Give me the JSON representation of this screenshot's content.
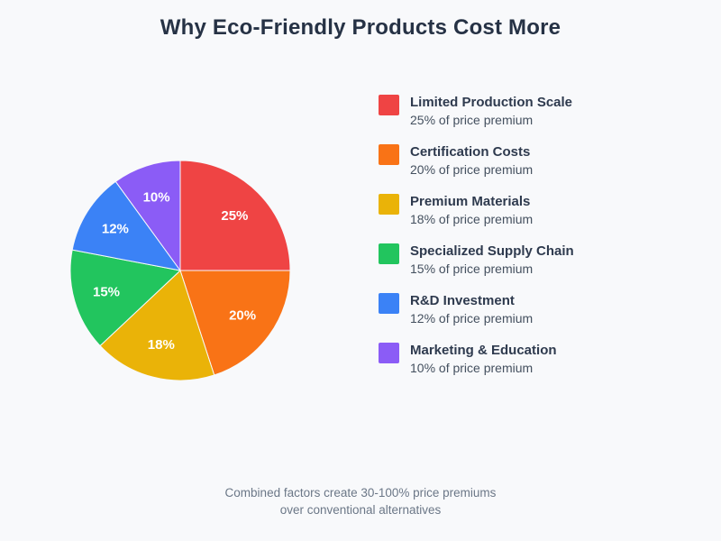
{
  "title": "Why Eco-Friendly Products Cost More",
  "colors": {
    "background": "#F8F9FB",
    "title_text": "#263245",
    "legend_title_text": "#2E3A4E",
    "legend_sub_text": "#44505F",
    "footer_text": "#6B7787",
    "slice_label_text": "#FFFFFF"
  },
  "chart_data": {
    "type": "pie",
    "title": "Why Eco-Friendly Products Cost More",
    "direction": "clockwise",
    "start_angle": "top",
    "legend_position": "right",
    "slice_label_color": "#FFFFFF",
    "slices": [
      {
        "label": "Limited Production Scale",
        "value": 25,
        "percent_label": "25%",
        "sublabel": "25% of price premium",
        "color": "#EF4444"
      },
      {
        "label": "Certification Costs",
        "value": 20,
        "percent_label": "20%",
        "sublabel": "20% of price premium",
        "color": "#F97316"
      },
      {
        "label": "Premium Materials",
        "value": 18,
        "percent_label": "18%",
        "sublabel": "18% of price premium",
        "color": "#EAB308"
      },
      {
        "label": "Specialized Supply Chain",
        "value": 15,
        "percent_label": "15%",
        "sublabel": "15% of price premium",
        "color": "#22C55E"
      },
      {
        "label": "R&D Investment",
        "value": 12,
        "percent_label": "12%",
        "sublabel": "12% of price premium",
        "color": "#3B82F6"
      },
      {
        "label": "Marketing & Education",
        "value": 10,
        "percent_label": "10%",
        "sublabel": "10% of price premium",
        "color": "#8B5CF6"
      }
    ]
  },
  "footer": {
    "line1": "Combined factors create 30-100% price premiums",
    "line2": "over conventional alternatives"
  }
}
